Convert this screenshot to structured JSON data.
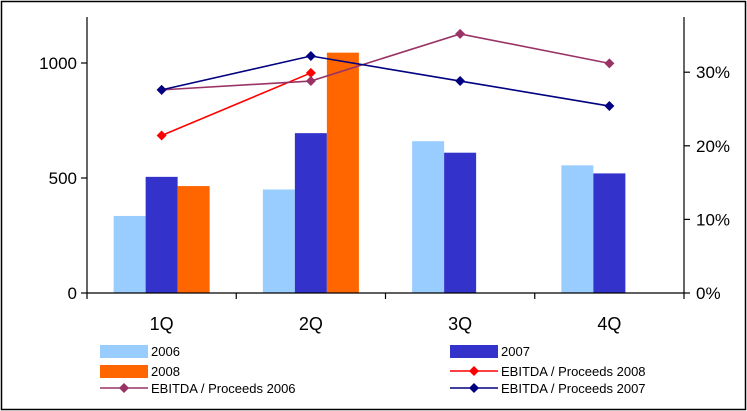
{
  "chart_data": {
    "type": "bar",
    "categories": [
      "1Q",
      "2Q",
      "3Q",
      "4Q"
    ],
    "y_left": {
      "ylim": [
        0,
        1200
      ],
      "ticks": [
        0,
        500,
        1000
      ],
      "tick_labels": [
        "0",
        "500",
        "1000"
      ]
    },
    "y_right": {
      "ylim": [
        0,
        0.375
      ],
      "ticks": [
        0,
        0.1,
        0.2,
        0.3
      ],
      "tick_labels": [
        "0%",
        "10%",
        "20%",
        "30%"
      ]
    },
    "grid": false,
    "legend_position": "bottom",
    "bar_series": [
      {
        "name": "2006",
        "color": "#99ccff",
        "values": [
          335,
          450,
          660,
          555
        ]
      },
      {
        "name": "2007",
        "color": "#3333cc",
        "values": [
          505,
          695,
          610,
          520
        ]
      },
      {
        "name": "2008",
        "color": "#ff6600",
        "values": [
          465,
          1045,
          null,
          null
        ]
      }
    ],
    "line_series": [
      {
        "name": "EBITDA / Proceeds 2008",
        "color": "#ff0000",
        "values": [
          0.214,
          0.299,
          null,
          null
        ]
      },
      {
        "name": "EBITDA / Proceeds 2006",
        "color": "#993366",
        "values": [
          0.276,
          0.288,
          0.352,
          0.312
        ]
      },
      {
        "name": "EBITDA / Proceeds 2007",
        "color": "#000080",
        "values": [
          0.276,
          0.322,
          0.288,
          0.254
        ]
      }
    ]
  }
}
